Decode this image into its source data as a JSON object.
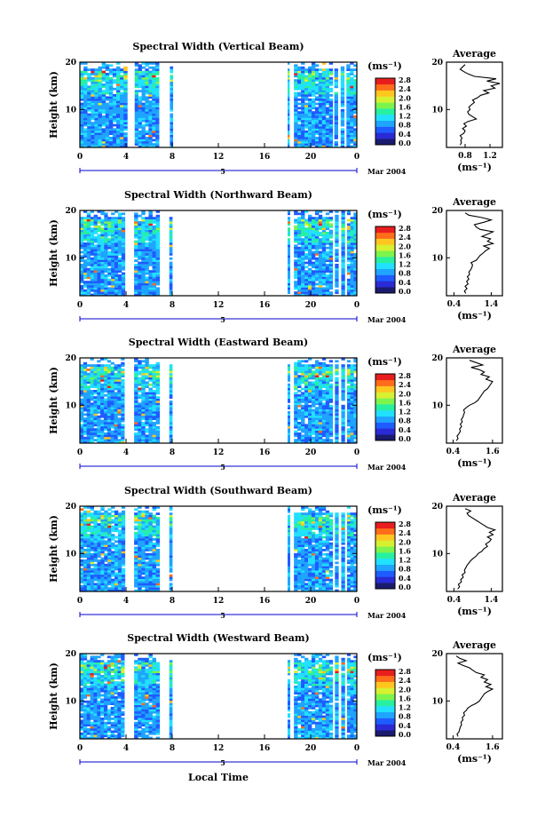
{
  "figure": {
    "xlabel": "Local Time",
    "date_label": "Mar 2004",
    "day_label": "5"
  },
  "colorbar": {
    "unit_label": "(ms⁻¹)",
    "tick_labels": [
      "0.0",
      "0.4",
      "0.8",
      "1.2",
      "1.6",
      "2.0",
      "2.4",
      "2.8"
    ],
    "colors": [
      "#1a1a6e",
      "#2b2bd6",
      "#1f5cff",
      "#1fa4ff",
      "#22e0ff",
      "#27f0a0",
      "#7cf44d",
      "#d8f032",
      "#ffc61f",
      "#ff6d1a",
      "#e81e1e"
    ]
  },
  "chart_data": [
    {
      "type": "heatmap",
      "title": "Spectral Width (Vertical Beam)",
      "ylabel": "Height (km)",
      "xlabel": "Local Time",
      "x_tick_labels": [
        "0",
        "4",
        "8",
        "12",
        "16",
        "20",
        "0"
      ],
      "y_tick_labels": [
        "10",
        "20"
      ],
      "xlim": [
        0,
        24
      ],
      "ylim": [
        2,
        20
      ],
      "colorbar_unit": "(ms⁻¹)",
      "colorbar_ticks": [
        "0.0",
        "0.4",
        "0.8",
        "1.2",
        "1.6",
        "2.0",
        "2.4",
        "2.8"
      ],
      "data_time_blocks": [
        [
          0.0,
          4.1
        ],
        [
          4.75,
          6.85
        ],
        [
          7.8,
          8.05
        ],
        [
          18.0,
          18.15
        ],
        [
          18.55,
          21.9
        ],
        [
          22.05,
          22.35
        ],
        [
          22.6,
          22.9
        ],
        [
          23.1,
          24.0
        ]
      ],
      "profile": {
        "title": "Average",
        "xlabel": "(ms⁻¹)",
        "x_tick_labels": [
          "0.8",
          "1.2"
        ],
        "y_tick_labels": [
          "10",
          "20"
        ],
        "xlim": [
          0.5,
          1.4
        ],
        "ylim": [
          2,
          20
        ],
        "height_km": [
          2.5,
          3.0,
          3.5,
          4.0,
          4.5,
          5.0,
          5.5,
          6.0,
          6.5,
          7.0,
          7.5,
          8.0,
          8.5,
          9.0,
          9.5,
          10.0,
          10.5,
          11.0,
          11.5,
          12.0,
          12.5,
          13.0,
          13.5,
          14.0,
          14.5,
          15.0,
          15.5,
          16.0,
          16.5,
          17.0,
          17.5,
          18.0,
          18.5,
          19.0,
          19.5
        ],
        "width_ms": [
          0.72,
          0.74,
          0.73,
          0.75,
          0.72,
          0.78,
          0.8,
          0.76,
          0.82,
          0.78,
          0.85,
          0.98,
          0.92,
          0.86,
          0.84,
          0.88,
          0.86,
          0.9,
          0.95,
          0.92,
          1.0,
          1.05,
          1.18,
          1.1,
          1.28,
          1.22,
          1.36,
          1.15,
          1.3,
          0.95,
          0.85,
          0.78,
          0.72,
          0.76,
          0.8
        ]
      }
    },
    {
      "type": "heatmap",
      "title": "Spectral Width (Northward Beam)",
      "ylabel": "Height (km)",
      "xlabel": "Local Time",
      "x_tick_labels": [
        "0",
        "4",
        "8",
        "12",
        "16",
        "20",
        "0"
      ],
      "y_tick_labels": [
        "10",
        "20"
      ],
      "xlim": [
        0,
        24
      ],
      "ylim": [
        2,
        20
      ],
      "colorbar_unit": "(ms⁻¹)",
      "colorbar_ticks": [
        "0.0",
        "0.4",
        "0.8",
        "1.2",
        "1.6",
        "2.0",
        "2.4",
        "2.8"
      ],
      "data_time_blocks": [
        [
          0.0,
          3.9
        ],
        [
          4.7,
          6.9
        ],
        [
          7.75,
          8.0
        ],
        [
          18.0,
          18.2
        ],
        [
          18.55,
          21.9
        ],
        [
          22.1,
          22.4
        ],
        [
          22.65,
          22.95
        ],
        [
          23.15,
          24.0
        ]
      ],
      "profile": {
        "title": "Average",
        "xlabel": "(ms⁻¹)",
        "x_tick_labels": [
          "0.4",
          "1.4"
        ],
        "y_tick_labels": [
          "10",
          "20"
        ],
        "xlim": [
          0.2,
          1.7
        ],
        "ylim": [
          2,
          20
        ],
        "height_km": [
          2.5,
          3.0,
          3.5,
          4.0,
          4.5,
          5.0,
          5.5,
          6.0,
          6.5,
          7.0,
          7.5,
          8.0,
          8.5,
          9.0,
          9.5,
          10.0,
          10.5,
          11.0,
          11.5,
          12.0,
          12.5,
          13.0,
          13.5,
          14.0,
          14.5,
          15.0,
          15.5,
          16.0,
          16.5,
          17.0,
          17.5,
          18.0,
          18.5,
          19.0,
          19.5
        ],
        "width_ms": [
          0.72,
          0.68,
          0.75,
          0.7,
          0.78,
          0.74,
          0.8,
          0.76,
          0.82,
          0.8,
          0.85,
          0.88,
          0.9,
          0.86,
          1.0,
          1.05,
          1.1,
          1.18,
          1.25,
          1.35,
          1.2,
          1.45,
          1.3,
          1.38,
          1.15,
          1.3,
          1.45,
          1.1,
          1.0,
          0.95,
          1.2,
          1.4,
          1.15,
          0.8,
          0.7
        ]
      }
    },
    {
      "type": "heatmap",
      "title": "Spectral Width (Eastward Beam)",
      "ylabel": "Height (km)",
      "xlabel": "Local Time",
      "x_tick_labels": [
        "0",
        "4",
        "8",
        "12",
        "16",
        "20",
        "0"
      ],
      "y_tick_labels": [
        "10",
        "20"
      ],
      "xlim": [
        0,
        24
      ],
      "ylim": [
        2,
        20
      ],
      "colorbar_unit": "(ms⁻¹)",
      "colorbar_ticks": [
        "0.0",
        "0.4",
        "0.8",
        "1.2",
        "1.6",
        "2.0",
        "2.4",
        "2.8"
      ],
      "data_time_blocks": [
        [
          0.0,
          3.85
        ],
        [
          4.7,
          6.9
        ],
        [
          7.75,
          8.0
        ],
        [
          18.0,
          18.2
        ],
        [
          18.55,
          21.9
        ],
        [
          22.1,
          22.4
        ],
        [
          22.65,
          22.95
        ],
        [
          23.15,
          24.0
        ]
      ],
      "profile": {
        "title": "Average",
        "xlabel": "(ms⁻¹)",
        "x_tick_labels": [
          "0.4",
          "1.6"
        ],
        "y_tick_labels": [
          "10",
          "20"
        ],
        "xlim": [
          0.2,
          1.9
        ],
        "ylim": [
          2,
          20
        ],
        "height_km": [
          2.5,
          3.0,
          3.5,
          4.0,
          4.5,
          5.0,
          5.5,
          6.0,
          6.5,
          7.0,
          7.5,
          8.0,
          8.5,
          9.0,
          9.5,
          10.0,
          10.5,
          11.0,
          11.5,
          12.0,
          12.5,
          13.0,
          13.5,
          14.0,
          14.5,
          15.0,
          15.5,
          16.0,
          16.5,
          17.0,
          17.5,
          18.0,
          18.5,
          19.0,
          19.5
        ],
        "width_ms": [
          0.5,
          0.55,
          0.52,
          0.58,
          0.62,
          0.6,
          0.66,
          0.62,
          0.68,
          0.65,
          0.7,
          0.72,
          0.75,
          0.72,
          0.8,
          0.9,
          1.05,
          1.15,
          1.2,
          1.25,
          1.3,
          1.35,
          1.45,
          1.5,
          1.55,
          1.6,
          1.4,
          1.5,
          1.25,
          1.35,
          1.2,
          0.95,
          1.3,
          1.1,
          0.9
        ]
      }
    },
    {
      "type": "heatmap",
      "title": "Spectral Width (Southward Beam)",
      "ylabel": "Height (km)",
      "xlabel": "Local Time",
      "x_tick_labels": [
        "0",
        "4",
        "8",
        "12",
        "16",
        "20",
        "0"
      ],
      "y_tick_labels": [
        "10",
        "20"
      ],
      "xlim": [
        0,
        24
      ],
      "ylim": [
        2,
        20
      ],
      "colorbar_unit": "(ms⁻¹)",
      "colorbar_ticks": [
        "0.0",
        "0.4",
        "0.8",
        "1.2",
        "1.6",
        "2.0",
        "2.4",
        "2.8"
      ],
      "data_time_blocks": [
        [
          0.0,
          3.9
        ],
        [
          4.7,
          6.9
        ],
        [
          7.75,
          8.0
        ],
        [
          18.0,
          18.2
        ],
        [
          18.55,
          21.9
        ],
        [
          22.1,
          22.4
        ],
        [
          22.65,
          22.95
        ],
        [
          23.15,
          24.0
        ]
      ],
      "profile": {
        "title": "Average",
        "xlabel": "(ms⁻¹)",
        "x_tick_labels": [
          "0.4",
          "1.4"
        ],
        "y_tick_labels": [
          "10",
          "20"
        ],
        "xlim": [
          0.2,
          1.7
        ],
        "ylim": [
          2,
          20
        ],
        "height_km": [
          2.5,
          3.0,
          3.5,
          4.0,
          4.5,
          5.0,
          5.5,
          6.0,
          6.5,
          7.0,
          7.5,
          8.0,
          8.5,
          9.0,
          9.5,
          10.0,
          10.5,
          11.0,
          11.5,
          12.0,
          12.5,
          13.0,
          13.5,
          14.0,
          14.5,
          15.0,
          15.5,
          16.0,
          16.5,
          17.0,
          17.5,
          18.0,
          18.5,
          19.0,
          19.5
        ],
        "width_ms": [
          0.5,
          0.55,
          0.52,
          0.6,
          0.58,
          0.65,
          0.62,
          0.7,
          0.68,
          0.72,
          0.75,
          0.8,
          0.85,
          0.92,
          1.0,
          1.05,
          1.15,
          1.2,
          1.3,
          1.25,
          1.35,
          1.4,
          1.3,
          1.45,
          1.35,
          1.5,
          1.3,
          1.2,
          1.1,
          1.0,
          0.9,
          0.8,
          0.75,
          0.85,
          0.7
        ]
      }
    },
    {
      "type": "heatmap",
      "title": "Spectral Width (Westward Beam)",
      "ylabel": "Height (km)",
      "xlabel": "Local Time",
      "x_tick_labels": [
        "0",
        "4",
        "8",
        "12",
        "16",
        "20",
        "0"
      ],
      "y_tick_labels": [
        "10",
        "20"
      ],
      "xlim": [
        0,
        24
      ],
      "ylim": [
        2,
        20
      ],
      "colorbar_unit": "(ms⁻¹)",
      "colorbar_ticks": [
        "0.0",
        "0.4",
        "0.8",
        "1.2",
        "1.6",
        "2.0",
        "2.4",
        "2.8"
      ],
      "data_time_blocks": [
        [
          0.0,
          3.85
        ],
        [
          4.7,
          6.9
        ],
        [
          7.75,
          8.0
        ],
        [
          18.0,
          18.2
        ],
        [
          18.55,
          21.9
        ],
        [
          22.1,
          22.4
        ],
        [
          22.65,
          22.95
        ],
        [
          23.15,
          24.0
        ]
      ],
      "profile": {
        "title": "Average",
        "xlabel": "(ms⁻¹)",
        "x_tick_labels": [
          "0.4",
          "1.6"
        ],
        "y_tick_labels": [
          "10",
          "20"
        ],
        "xlim": [
          0.2,
          1.9
        ],
        "ylim": [
          2,
          20
        ],
        "height_km": [
          2.5,
          3.0,
          3.5,
          4.0,
          4.5,
          5.0,
          5.5,
          6.0,
          6.5,
          7.0,
          7.5,
          8.0,
          8.5,
          9.0,
          9.5,
          10.0,
          10.5,
          11.0,
          11.5,
          12.0,
          12.5,
          13.0,
          13.5,
          14.0,
          14.5,
          15.0,
          15.5,
          16.0,
          16.5,
          17.0,
          17.5,
          18.0,
          18.5,
          19.0,
          19.5
        ],
        "width_ms": [
          0.55,
          0.52,
          0.58,
          0.6,
          0.62,
          0.66,
          0.64,
          0.7,
          0.68,
          0.75,
          0.72,
          0.8,
          0.85,
          0.95,
          1.1,
          1.2,
          1.25,
          1.3,
          1.35,
          1.45,
          1.6,
          1.4,
          1.55,
          1.35,
          1.45,
          1.25,
          1.35,
          1.1,
          1.0,
          0.9,
          0.7,
          0.55,
          0.8,
          0.6,
          0.5
        ]
      }
    }
  ]
}
